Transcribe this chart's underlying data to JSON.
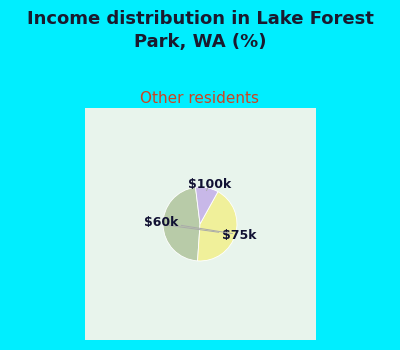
{
  "title": "Income distribution in Lake Forest\nPark, WA (%)",
  "subtitle": "Other residents",
  "slices": [
    {
      "label": "$75k",
      "value": 47,
      "color": "#b8cba8"
    },
    {
      "label": "$60k",
      "value": 43,
      "color": "#f0f09a"
    },
    {
      "label": "$100k",
      "value": 10,
      "color": "#c8b8e8"
    }
  ],
  "background_color": "#00eeff",
  "pie_bg_color": "#ddf0e8",
  "title_color": "#1a1a2e",
  "subtitle_color": "#cc4422",
  "title_fontsize": 13,
  "subtitle_fontsize": 11,
  "label_fontsize": 9,
  "startangle": 97
}
